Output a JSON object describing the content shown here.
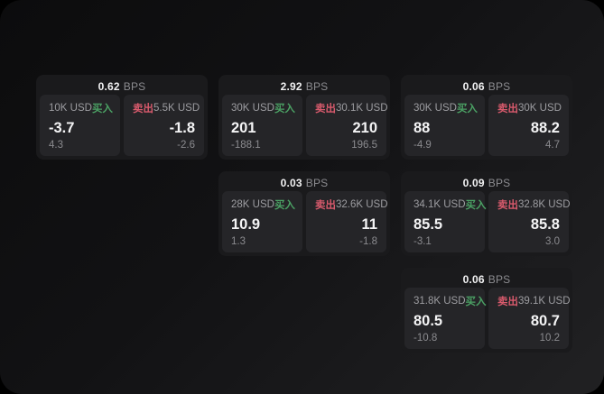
{
  "labels": {
    "bps_suffix": "BPS",
    "buy_label": "买入",
    "sell_label": "卖出"
  },
  "colors": {
    "buy": "#4ba164",
    "sell": "#d85a6c",
    "card_bg": "#1a1a1c",
    "panel_bg": "#252528"
  },
  "cards": [
    {
      "bps": "0.62",
      "row": 1,
      "col": 1,
      "buy": {
        "amount": "10K USD",
        "price": "-3.7",
        "delta": "4.3"
      },
      "sell": {
        "amount": "5.5K USD",
        "price": "-1.8",
        "delta": "-2.6"
      }
    },
    {
      "bps": "2.92",
      "row": 1,
      "col": 2,
      "buy": {
        "amount": "30K USD",
        "price": "201",
        "delta": "-188.1"
      },
      "sell": {
        "amount": "30.1K USD",
        "price": "210",
        "delta": "196.5"
      }
    },
    {
      "bps": "0.06",
      "row": 1,
      "col": 3,
      "buy": {
        "amount": "30K USD",
        "price": "88",
        "delta": "-4.9"
      },
      "sell": {
        "amount": "30K USD",
        "price": "88.2",
        "delta": "4.7"
      }
    },
    {
      "bps": "0.03",
      "row": 2,
      "col": 2,
      "buy": {
        "amount": "28K USD",
        "price": "10.9",
        "delta": "1.3"
      },
      "sell": {
        "amount": "32.6K USD",
        "price": "11",
        "delta": "-1.8"
      }
    },
    {
      "bps": "0.09",
      "row": 2,
      "col": 3,
      "buy": {
        "amount": "34.1K USD",
        "price": "85.5",
        "delta": "-3.1"
      },
      "sell": {
        "amount": "32.8K USD",
        "price": "85.8",
        "delta": "3.0"
      }
    },
    {
      "bps": "0.06",
      "row": 3,
      "col": 3,
      "buy": {
        "amount": "31.8K USD",
        "price": "80.5",
        "delta": "-10.8"
      },
      "sell": {
        "amount": "39.1K USD",
        "price": "80.7",
        "delta": "10.2"
      }
    }
  ]
}
